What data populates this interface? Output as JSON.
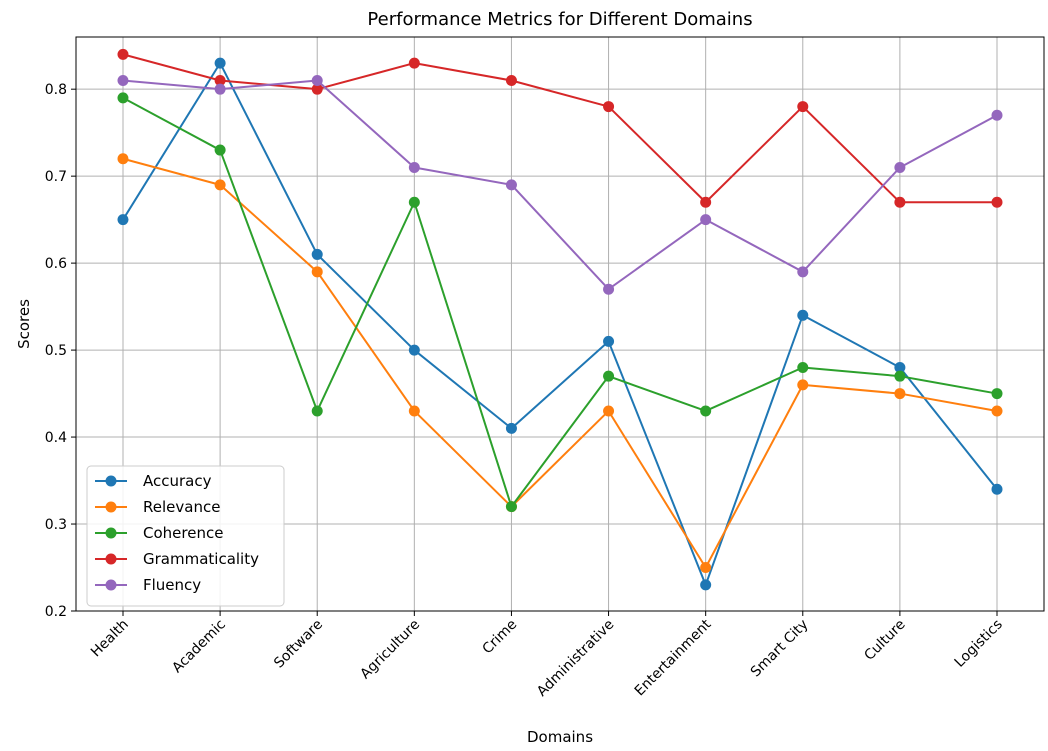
{
  "chart_data": {
    "type": "line",
    "title": "Performance Metrics for Different Domains",
    "xlabel": "Domains",
    "ylabel": "Scores",
    "categories": [
      "Health",
      "Academic",
      "Software",
      "Agriculture",
      "Crime",
      "Administrative",
      "Entertainment",
      "Smart City",
      "Culture",
      "Logistics"
    ],
    "ylim": [
      0.2,
      0.86
    ],
    "yticks": [
      "0.2",
      "0.3",
      "0.4",
      "0.5",
      "0.6",
      "0.7",
      "0.8"
    ],
    "grid": true,
    "legend_position": "lower-left",
    "x_tick_rotation": 45,
    "series": [
      {
        "name": "Accuracy",
        "color": "#1f77b4",
        "values": [
          0.65,
          0.83,
          0.61,
          0.5,
          0.41,
          0.51,
          0.23,
          0.54,
          0.48,
          0.34
        ]
      },
      {
        "name": "Relevance",
        "color": "#ff7f0e",
        "values": [
          0.72,
          0.69,
          0.59,
          0.43,
          0.32,
          0.43,
          0.25,
          0.46,
          0.45,
          0.43
        ]
      },
      {
        "name": "Coherence",
        "color": "#2ca02c",
        "values": [
          0.79,
          0.73,
          0.43,
          0.67,
          0.32,
          0.47,
          0.43,
          0.48,
          0.47,
          0.45
        ]
      },
      {
        "name": "Grammaticality",
        "color": "#d62728",
        "values": [
          0.84,
          0.81,
          0.8,
          0.83,
          0.81,
          0.78,
          0.67,
          0.78,
          0.67,
          0.67
        ]
      },
      {
        "name": "Fluency",
        "color": "#9467bd",
        "values": [
          0.81,
          0.8,
          0.81,
          0.71,
          0.69,
          0.57,
          0.65,
          0.59,
          0.71,
          0.77
        ]
      }
    ]
  }
}
